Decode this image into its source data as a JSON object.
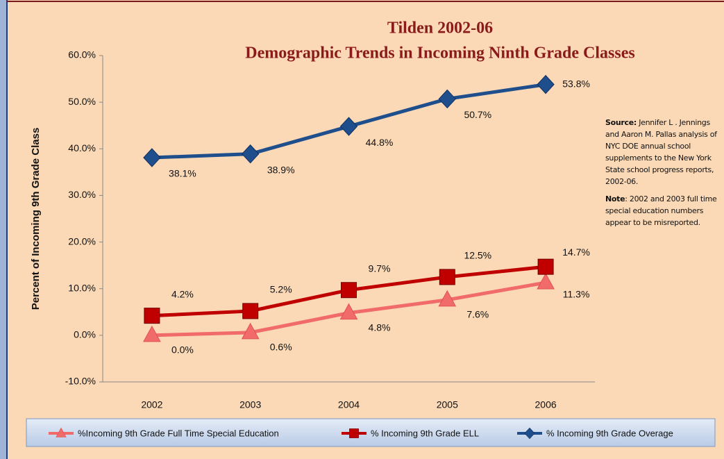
{
  "chart_data": {
    "type": "line",
    "title": "Tilden 2002-06",
    "subtitle": "Demographic Trends in Incoming Ninth Grade Classes",
    "y_label": "Percent of Incoming 9th Grade Class",
    "categories": [
      "2002",
      "2003",
      "2004",
      "2005",
      "2006"
    ],
    "series": [
      {
        "name": "%Incoming 9th Grade Full Time Special Education",
        "color": "#f26b6b",
        "marker": "triangle",
        "values": [
          0.0,
          0.6,
          4.8,
          7.6,
          11.3
        ],
        "value_labels": [
          "0.0%",
          "0.6%",
          "4.8%",
          "7.6%",
          "11.3%"
        ]
      },
      {
        "name": "% Incoming 9th Grade ELL",
        "color": "#c00000",
        "marker": "square",
        "values": [
          4.2,
          5.2,
          9.7,
          12.5,
          14.7
        ],
        "value_labels": [
          "4.2%",
          "5.2%",
          "9.7%",
          "12.5%",
          "14.7%"
        ]
      },
      {
        "name": "% Incoming 9th Grade Overage",
        "color": "#1f4e8c",
        "marker": "diamond",
        "values": [
          38.1,
          38.9,
          44.8,
          50.7,
          53.8
        ],
        "value_labels": [
          "38.1%",
          "38.9%",
          "44.8%",
          "50.7%",
          "53.8%"
        ]
      }
    ],
    "ylim": [
      -10,
      60
    ],
    "yticks": [
      {
        "value": -10,
        "label": "-10.0%"
      },
      {
        "value": 0,
        "label": "0.0%"
      },
      {
        "value": 10,
        "label": "10.0%"
      },
      {
        "value": 20,
        "label": "20.0%"
      },
      {
        "value": 30,
        "label": "30.0%"
      },
      {
        "value": 40,
        "label": "40.0%"
      },
      {
        "value": 50,
        "label": "50.0%"
      },
      {
        "value": 60,
        "label": "60.0%"
      }
    ],
    "source_label": "Source:",
    "source": "Jennifer L . Jennings and Aaron M. Pallas analysis of NYC DOE annual school supplements to the New York State school progress reports, 2002-06.",
    "note_label": "Note",
    "note": ": 2002 and 2003 full time special education numbers appear to be misreported.",
    "legend": "bottom"
  }
}
